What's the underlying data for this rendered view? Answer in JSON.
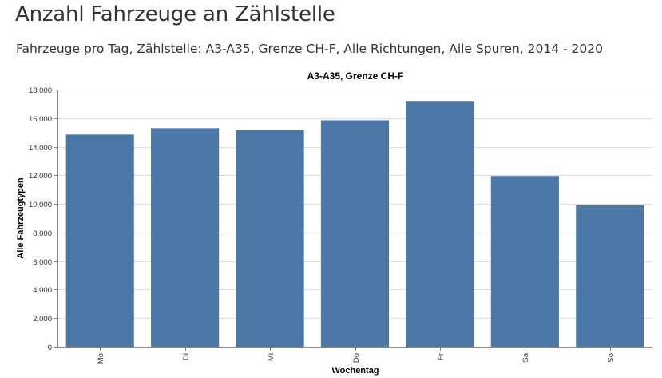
{
  "page": {
    "title": "Anzahl Fahrzeuge an Zählstelle",
    "subtitle": "Fahrzeuge pro Tag, Zählstelle: A3-A35, Grenze CH-F, Alle Richtungen, Alle Spuren, 2014 - 2020"
  },
  "chart_data": {
    "type": "bar",
    "title": "A3-A35, Grenze CH-F",
    "xlabel": "Wochentag",
    "ylabel": "Alle Fahrzeugtypen",
    "categories": [
      "Mo",
      "Di",
      "Mi",
      "Do",
      "Fr",
      "Sa",
      "So"
    ],
    "values": [
      14850,
      15300,
      15150,
      15850,
      17150,
      11950,
      9900
    ],
    "ylim": [
      0,
      18000
    ],
    "yticks": [
      0,
      2000,
      4000,
      6000,
      8000,
      10000,
      12000,
      14000,
      16000,
      18000
    ],
    "ytick_labels": [
      "0",
      "2,000",
      "4,000",
      "6,000",
      "8,000",
      "10,000",
      "12,000",
      "14,000",
      "16,000",
      "18,000"
    ],
    "grid": true,
    "bar_color": "#4c78a8"
  }
}
